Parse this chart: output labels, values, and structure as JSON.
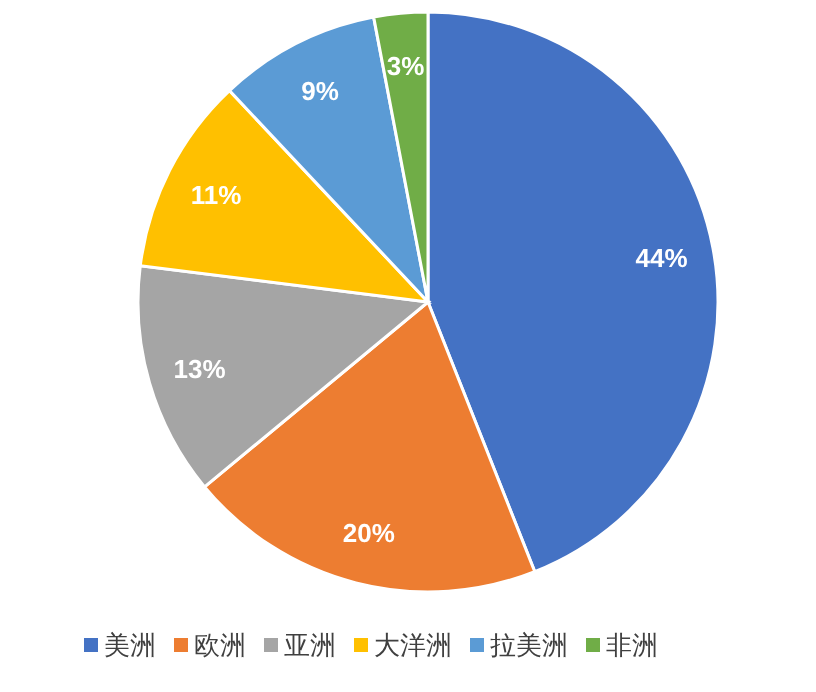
{
  "chart_data": {
    "type": "pie",
    "categories": [
      "美洲",
      "欧洲",
      "亚洲",
      "大洋洲",
      "拉美洲",
      "非洲"
    ],
    "values": [
      44,
      20,
      13,
      11,
      9,
      3
    ],
    "colors": [
      "#4472c4",
      "#ed7d31",
      "#a5a5a5",
      "#ffc000",
      "#5b9bd5",
      "#70ad47"
    ],
    "value_labels": [
      "44%",
      "20%",
      "13%",
      "11%",
      "9%",
      "3%"
    ],
    "legend": "bottom"
  }
}
